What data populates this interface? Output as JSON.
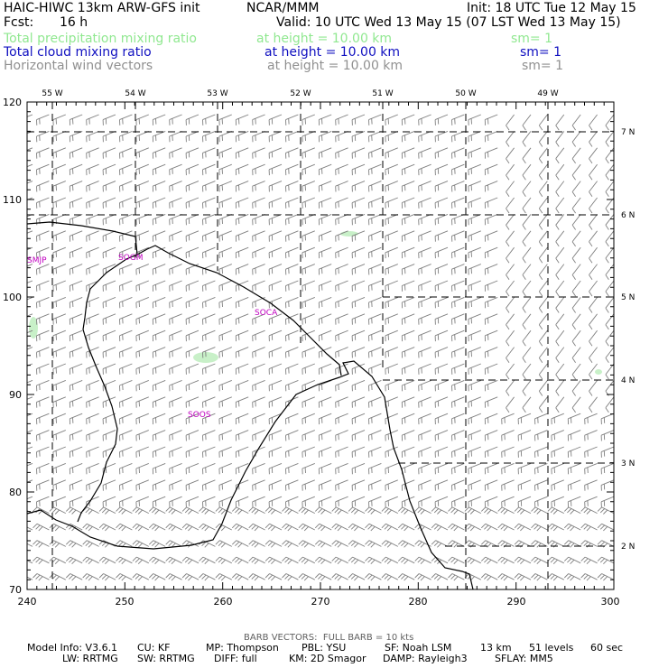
{
  "header": {
    "model_title": "HAIC-HIWC 13km ARW-GFS init",
    "org": "NCAR/MMM",
    "init": "Init: 18 UTC Tue 12 May 15",
    "fcst_label": "Fcst:",
    "fcst_value": "16 h",
    "valid": "Valid: 10 UTC Wed 13 May 15 (07 LST Wed 13 May 15)"
  },
  "fields": [
    {
      "name": "Total precipitation mixing ratio",
      "level": "at height = 10.00 km",
      "sm": "sm= 1",
      "color": "#90e890"
    },
    {
      "name": "Total cloud mixing ratio",
      "level": "at height = 10.00 km",
      "sm": "sm= 1",
      "color": "#1010c0"
    },
    {
      "name": "Horizontal wind vectors",
      "level": "at height = 10.00 km",
      "sm": "sm= 1",
      "color": "#909090"
    }
  ],
  "map": {
    "x_ticks": [
      "240",
      "250",
      "260",
      "270",
      "280",
      "290",
      "300"
    ],
    "y_ticks": [
      "70",
      "80",
      "90",
      "100",
      "110",
      "120"
    ],
    "lon_labels": [
      "55 W",
      "54 W",
      "53 W",
      "52 W",
      "51 W",
      "50 W",
      "49 W"
    ],
    "lat_labels": [
      "7 N",
      "6 N",
      "5 N",
      "4 N",
      "3 N",
      "2 N"
    ],
    "stations": [
      "SMJP",
      "SOGM",
      "SOCA",
      "SOOS"
    ],
    "x_range": [
      240,
      300
    ],
    "y_range": [
      70,
      120
    ],
    "wind_direction": "easterly",
    "barb_color": "#808080",
    "coast_color": "#000000",
    "station_color": "#c000c0",
    "precip_color": "#c8f0c8"
  },
  "footer": {
    "barb_note": "BARB VECTORS:  FULL BARB = 10 kts",
    "line1": [
      "Model Info: V3.6.1",
      "CU: KF",
      "MP: Thompson",
      "PBL: YSU",
      "SF: Noah LSM",
      "13 km",
      "51 levels",
      "60 sec"
    ],
    "line2": [
      "LW: RRTMG",
      "SW: RRTMG",
      "DIFF: full",
      "KM: 2D Smagor",
      "DAMP: Rayleigh3",
      "SFLAY: MM5"
    ]
  }
}
